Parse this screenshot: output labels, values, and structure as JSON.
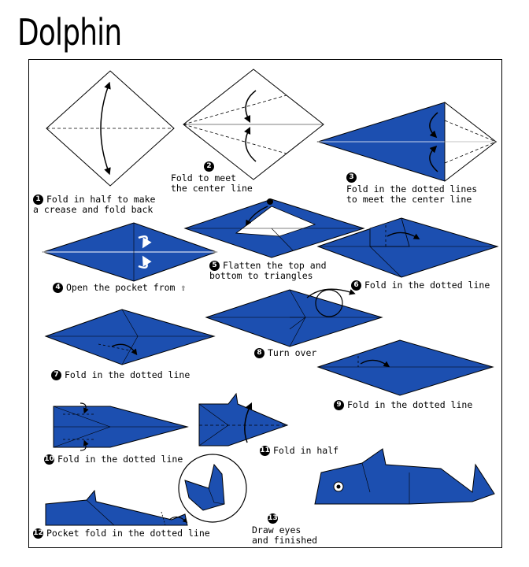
{
  "title": "Dolphin",
  "colors": {
    "paper": "#1c4fb0",
    "paper_dark": "#153f94",
    "outline": "#000000",
    "white": "#ffffff"
  },
  "steps": [
    {
      "num": "1",
      "text": "Fold in half to make\na crease and fold back"
    },
    {
      "num": "2",
      "text": "Fold to meet\nthe center line"
    },
    {
      "num": "3",
      "text": "Fold in the dotted lines\nto meet the center line"
    },
    {
      "num": "4",
      "text": "Open the pocket from ⇧"
    },
    {
      "num": "5",
      "text": "Flatten the top and\nbottom to triangles"
    },
    {
      "num": "6",
      "text": "Fold in the dotted line"
    },
    {
      "num": "7",
      "text": "Fold in the dotted line"
    },
    {
      "num": "8",
      "text": "Turn over"
    },
    {
      "num": "9",
      "text": "Fold in the dotted line"
    },
    {
      "num": "10",
      "text": "Fold in the dotted line"
    },
    {
      "num": "11",
      "text": "Fold in half"
    },
    {
      "num": "12",
      "text": "Pocket fold in the dotted line"
    },
    {
      "num": "13",
      "text": "Draw eyes\nand finished"
    }
  ]
}
